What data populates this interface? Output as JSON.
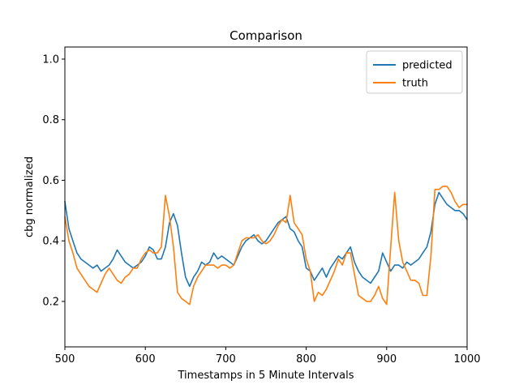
{
  "chart_data": {
    "type": "line",
    "title": "Comparison",
    "xlabel": "Timestamps in 5 Minute Intervals",
    "ylabel": "cbg normalized",
    "xlim": [
      500,
      1000
    ],
    "ylim": [
      0.05,
      1.04
    ],
    "xticks": [
      500,
      600,
      700,
      800,
      900,
      1000
    ],
    "yticks": [
      0.2,
      0.4,
      0.6,
      0.8,
      1.0
    ],
    "xtick_labels": [
      "500",
      "600",
      "700",
      "800",
      "900",
      "1000"
    ],
    "ytick_labels": [
      "0.2",
      "0.4",
      "0.6",
      "0.8",
      "1.0"
    ],
    "grid": false,
    "legend_position": "top-right",
    "series": [
      {
        "name": "predicted",
        "color": "#1f77b4",
        "x": [
          500,
          505,
          510,
          515,
          520,
          525,
          530,
          535,
          540,
          545,
          550,
          555,
          560,
          565,
          570,
          575,
          580,
          585,
          590,
          595,
          600,
          605,
          610,
          615,
          620,
          625,
          630,
          635,
          640,
          645,
          650,
          655,
          660,
          665,
          670,
          675,
          680,
          685,
          690,
          695,
          700,
          705,
          710,
          715,
          720,
          725,
          730,
          735,
          740,
          745,
          750,
          755,
          760,
          765,
          770,
          775,
          780,
          785,
          790,
          795,
          800,
          805,
          810,
          815,
          820,
          825,
          830,
          835,
          840,
          845,
          850,
          855,
          860,
          865,
          870,
          875,
          880,
          885,
          890,
          895,
          900,
          905,
          910,
          915,
          920,
          925,
          930,
          935,
          940,
          945,
          950,
          955,
          960,
          965,
          970,
          975,
          980,
          985,
          990,
          995,
          1000
        ],
        "y": [
          0.53,
          0.44,
          0.4,
          0.36,
          0.34,
          0.33,
          0.32,
          0.31,
          0.32,
          0.3,
          0.31,
          0.32,
          0.34,
          0.37,
          0.35,
          0.33,
          0.32,
          0.31,
          0.32,
          0.33,
          0.35,
          0.38,
          0.37,
          0.34,
          0.34,
          0.38,
          0.46,
          0.49,
          0.45,
          0.36,
          0.28,
          0.25,
          0.28,
          0.3,
          0.33,
          0.32,
          0.33,
          0.36,
          0.34,
          0.35,
          0.34,
          0.33,
          0.32,
          0.35,
          0.38,
          0.4,
          0.41,
          0.42,
          0.4,
          0.39,
          0.4,
          0.42,
          0.44,
          0.46,
          0.47,
          0.48,
          0.44,
          0.43,
          0.4,
          0.38,
          0.31,
          0.3,
          0.27,
          0.29,
          0.31,
          0.28,
          0.31,
          0.33,
          0.35,
          0.34,
          0.36,
          0.38,
          0.33,
          0.3,
          0.28,
          0.27,
          0.26,
          0.28,
          0.3,
          0.36,
          0.33,
          0.3,
          0.32,
          0.32,
          0.31,
          0.33,
          0.32,
          0.33,
          0.34,
          0.36,
          0.38,
          0.43,
          0.52,
          0.56,
          0.54,
          0.52,
          0.51,
          0.5,
          0.5,
          0.49,
          0.47
        ]
      },
      {
        "name": "truth",
        "color": "#ff7f0e",
        "x": [
          500,
          505,
          510,
          515,
          520,
          525,
          530,
          535,
          540,
          545,
          550,
          555,
          560,
          565,
          570,
          575,
          580,
          585,
          590,
          595,
          600,
          605,
          610,
          615,
          620,
          625,
          630,
          635,
          640,
          645,
          650,
          655,
          660,
          665,
          670,
          675,
          680,
          685,
          690,
          695,
          700,
          705,
          710,
          715,
          720,
          725,
          730,
          735,
          740,
          745,
          750,
          755,
          760,
          765,
          770,
          775,
          780,
          785,
          790,
          795,
          800,
          805,
          810,
          815,
          820,
          825,
          830,
          835,
          840,
          845,
          850,
          855,
          860,
          865,
          870,
          875,
          880,
          885,
          890,
          895,
          900,
          905,
          910,
          915,
          920,
          925,
          930,
          935,
          940,
          945,
          950,
          955,
          960,
          965,
          970,
          975,
          980,
          985,
          990,
          995,
          1000
        ],
        "y": [
          0.48,
          0.4,
          0.36,
          0.31,
          0.29,
          0.27,
          0.25,
          0.24,
          0.23,
          0.26,
          0.29,
          0.31,
          0.29,
          0.27,
          0.26,
          0.28,
          0.29,
          0.31,
          0.31,
          0.34,
          0.36,
          0.37,
          0.36,
          0.36,
          0.38,
          0.55,
          0.48,
          0.38,
          0.23,
          0.21,
          0.2,
          0.19,
          0.25,
          0.28,
          0.3,
          0.32,
          0.32,
          0.32,
          0.31,
          0.32,
          0.32,
          0.31,
          0.32,
          0.36,
          0.4,
          0.41,
          0.41,
          0.41,
          0.42,
          0.4,
          0.39,
          0.4,
          0.42,
          0.45,
          0.47,
          0.46,
          0.55,
          0.46,
          0.44,
          0.42,
          0.34,
          0.3,
          0.2,
          0.23,
          0.22,
          0.24,
          0.27,
          0.3,
          0.34,
          0.32,
          0.36,
          0.36,
          0.29,
          0.22,
          0.21,
          0.2,
          0.2,
          0.22,
          0.25,
          0.21,
          0.19,
          0.38,
          0.56,
          0.4,
          0.33,
          0.3,
          0.27,
          0.27,
          0.26,
          0.22,
          0.22,
          0.35,
          0.57,
          0.57,
          0.58,
          0.58,
          0.56,
          0.53,
          0.51,
          0.52,
          0.52
        ]
      }
    ]
  }
}
